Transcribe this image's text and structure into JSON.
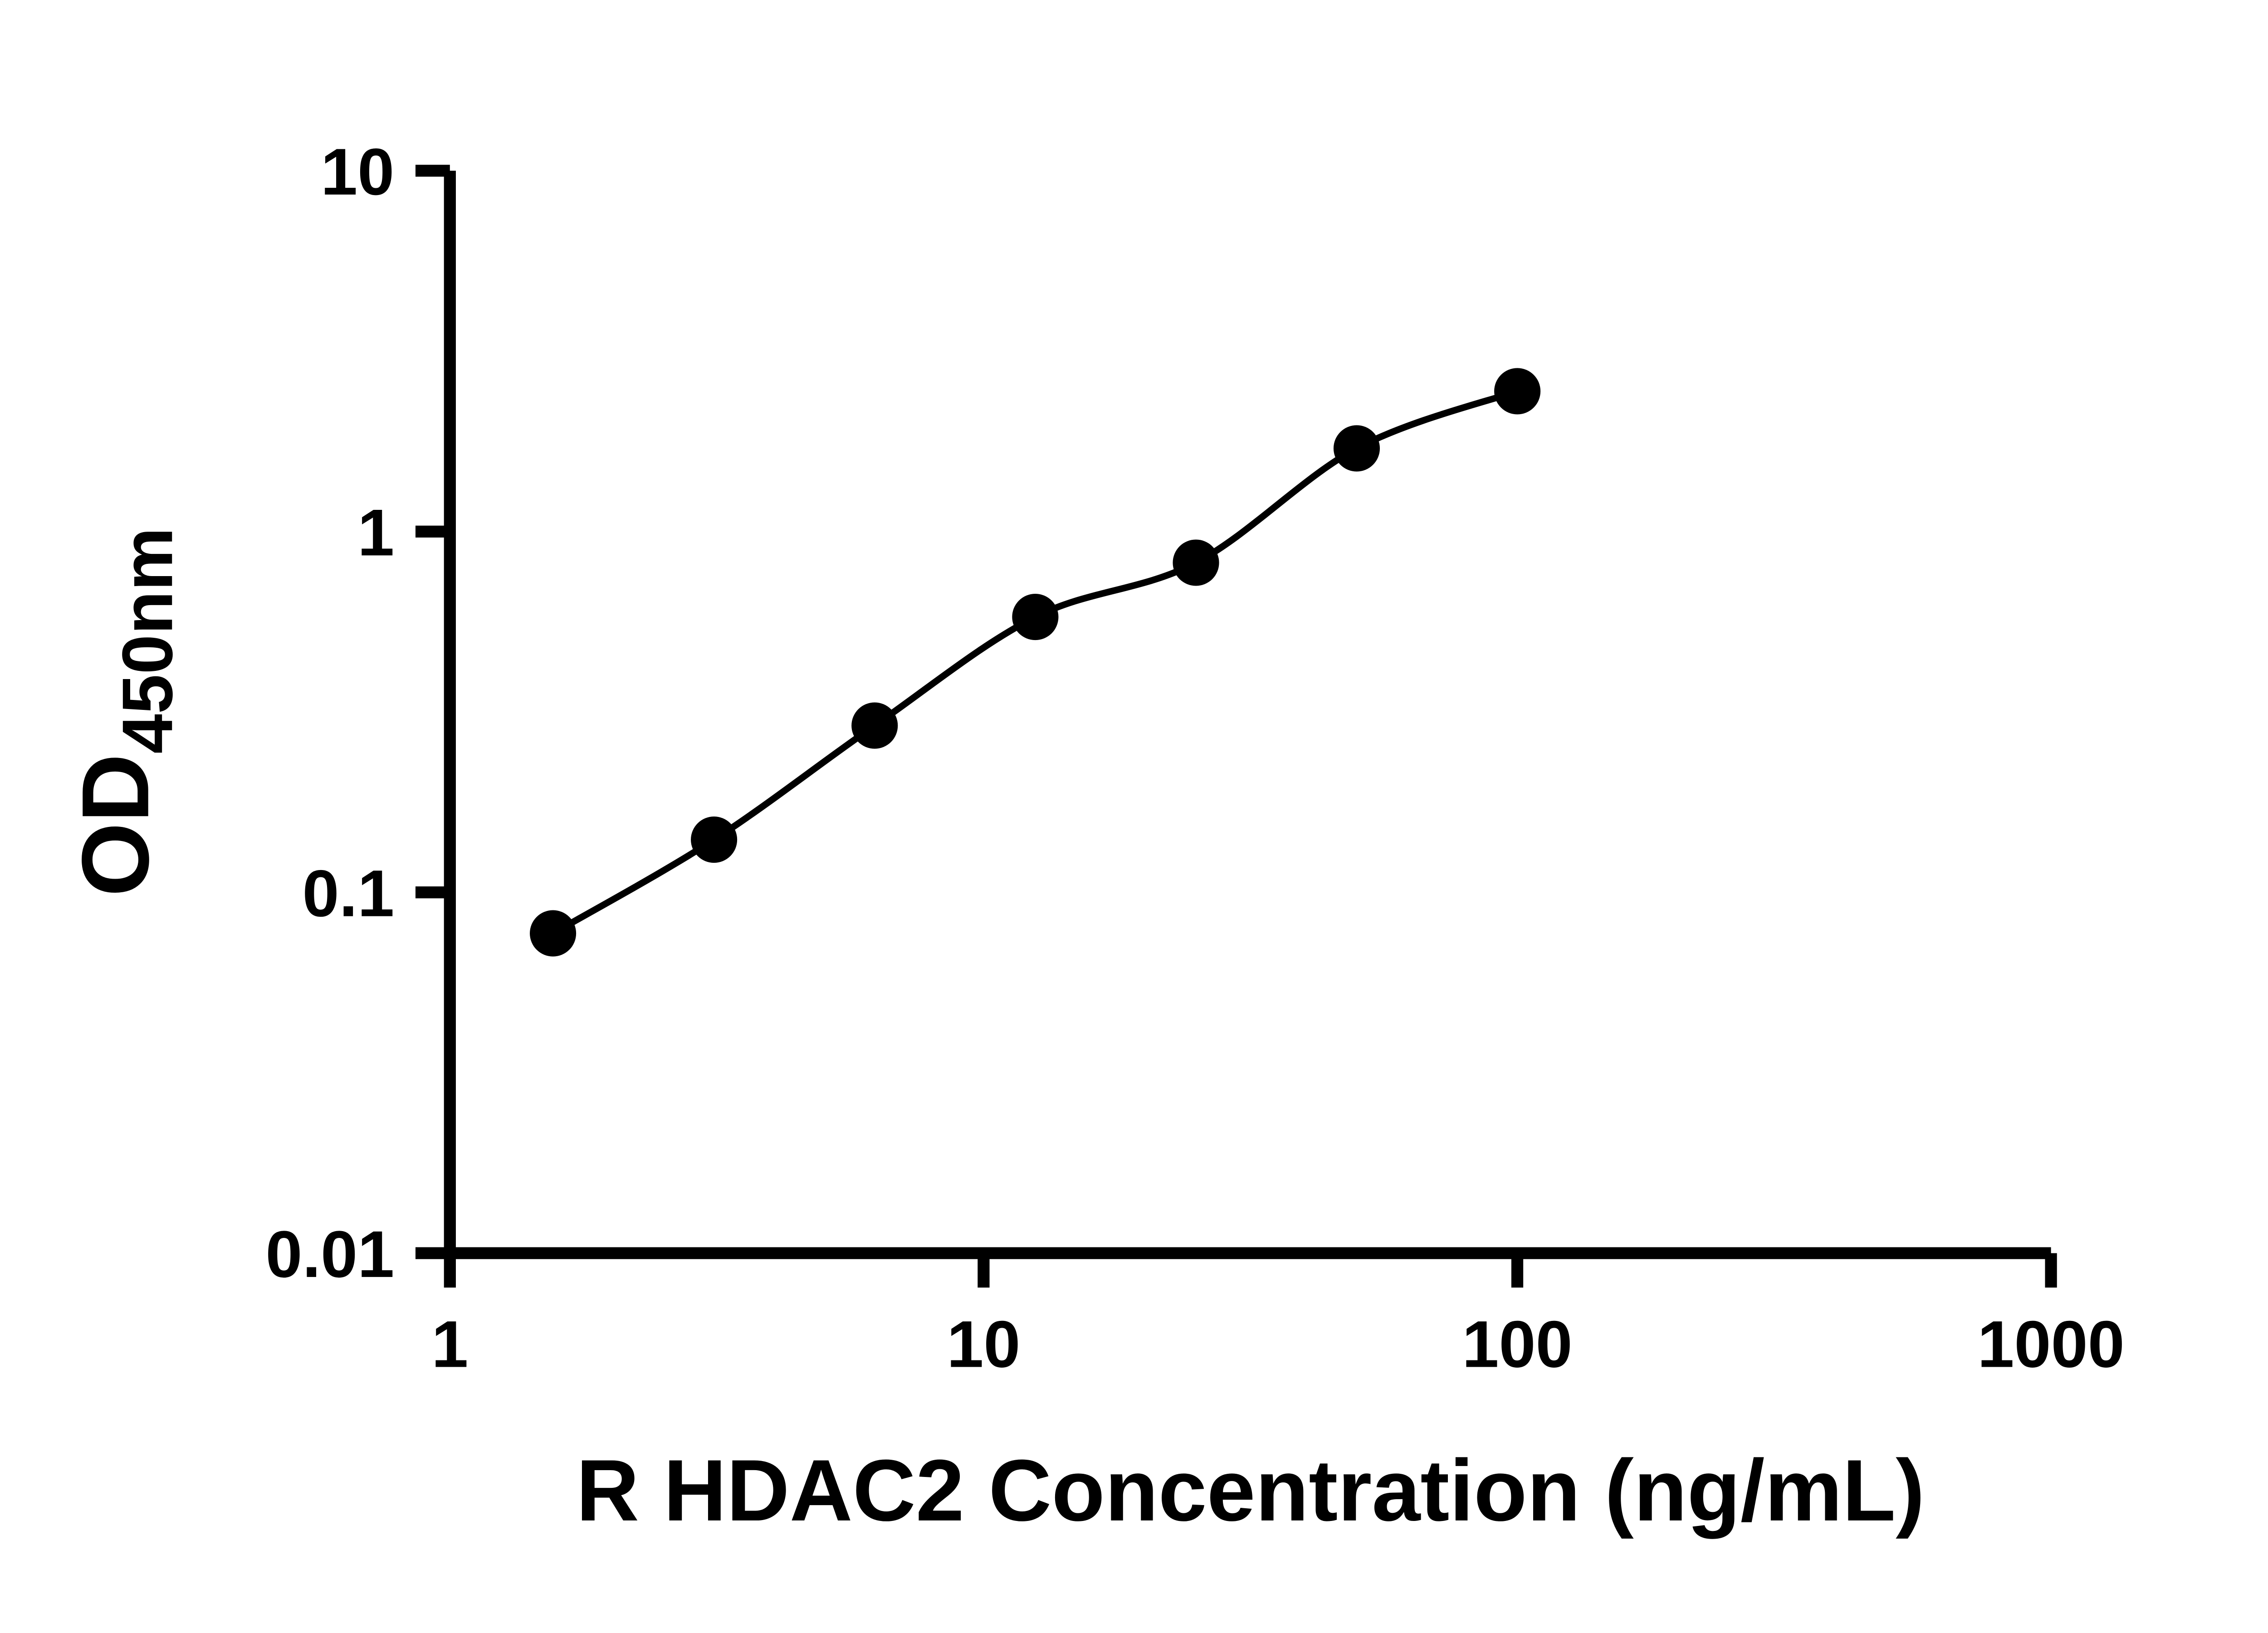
{
  "chart_data": {
    "type": "scatter",
    "title": "",
    "xlabel": "R HDAC2 Concentration (ng/mL)",
    "ylabel_main": "OD",
    "ylabel_sub": "450nm",
    "x_scale": "log",
    "y_scale": "log",
    "xlim": [
      1,
      1000
    ],
    "ylim": [
      0.01,
      10
    ],
    "x_ticks": [
      1,
      10,
      100,
      1000
    ],
    "x_tick_labels": [
      "1",
      "10",
      "100",
      "1000"
    ],
    "y_ticks": [
      0.01,
      0.1,
      1,
      10
    ],
    "y_tick_labels": [
      "0.01",
      "0.1",
      "1",
      "10"
    ],
    "grid": false,
    "legend": "none",
    "series": [
      {
        "marker": "circle",
        "marker_color": "#000000",
        "line_color": "#000000",
        "points": [
          {
            "x": 1.56,
            "y": 0.077
          },
          {
            "x": 3.125,
            "y": 0.14
          },
          {
            "x": 6.25,
            "y": 0.29
          },
          {
            "x": 12.5,
            "y": 0.58
          },
          {
            "x": 25,
            "y": 0.82
          },
          {
            "x": 50,
            "y": 1.7
          },
          {
            "x": 100,
            "y": 2.45
          }
        ]
      }
    ]
  },
  "colors": {
    "background": "#ffffff",
    "axis": "#000000",
    "marker": "#000000",
    "curve": "#000000",
    "text": "#000000"
  }
}
